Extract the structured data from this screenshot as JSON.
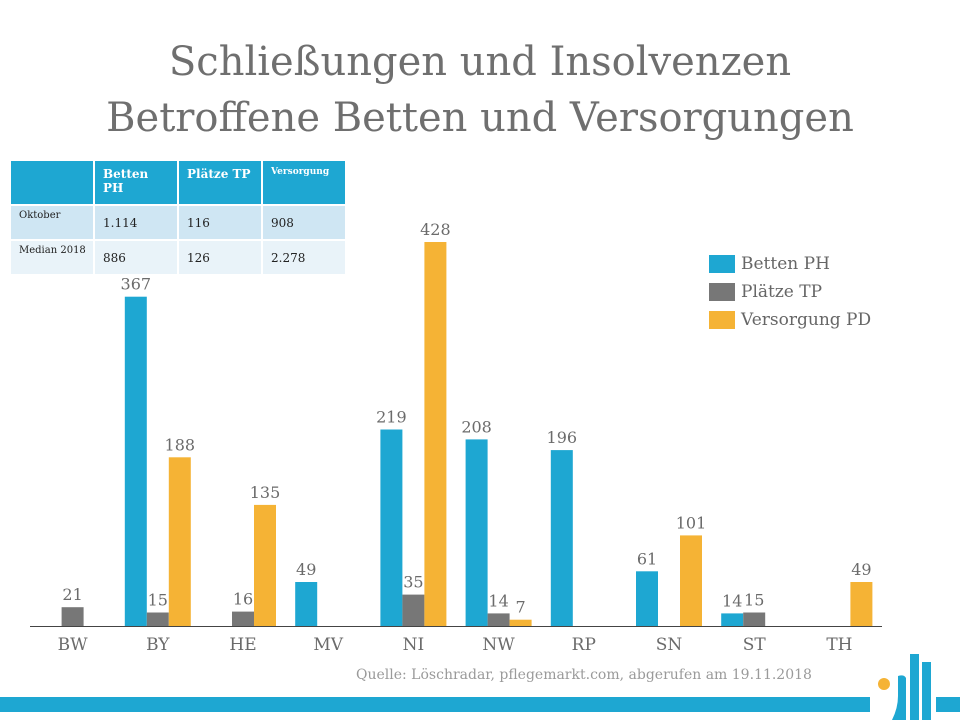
{
  "title": {
    "line1": "Schließungen und Insolvenzen",
    "line2": "Betroffene Betten und Versorgungen"
  },
  "table": {
    "headers": [
      "",
      "Betten PH",
      "Plätze TP",
      "Versorgung"
    ],
    "rows": [
      {
        "label": "Oktober",
        "values": [
          "1.114",
          "116",
          "908"
        ]
      },
      {
        "label": "Median 2018",
        "values": [
          "886",
          "126",
          "2.278"
        ]
      }
    ]
  },
  "legend": {
    "items": [
      {
        "label": "Betten PH",
        "color": "#1ea7d2"
      },
      {
        "label": "Plätze TP",
        "color": "#777777"
      },
      {
        "label": "Versorgung PD",
        "color": "#f5b335"
      }
    ]
  },
  "source": "Quelle: Löschradar, pflegemarkt.com, abgerufen am 19.11.2018",
  "chart_data": {
    "type": "bar",
    "categories": [
      "BW",
      "BY",
      "HE",
      "MV",
      "NI",
      "NW",
      "RP",
      "SN",
      "ST",
      "TH"
    ],
    "series": [
      {
        "name": "Betten PH",
        "color": "#1ea7d2",
        "values": [
          null,
          367,
          null,
          49,
          219,
          208,
          196,
          61,
          14,
          null
        ]
      },
      {
        "name": "Plätze TP",
        "color": "#777777",
        "values": [
          21,
          15,
          16,
          null,
          35,
          14,
          null,
          null,
          15,
          null
        ]
      },
      {
        "name": "Versorgung PD",
        "color": "#f5b335",
        "values": [
          null,
          188,
          135,
          null,
          428,
          7,
          null,
          101,
          null,
          49
        ]
      }
    ],
    "ylim": [
      0,
      450
    ],
    "grid": false,
    "legend_position": "right"
  }
}
